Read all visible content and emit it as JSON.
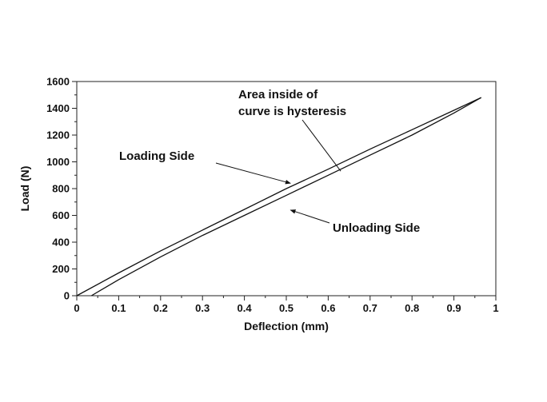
{
  "chart_data": {
    "type": "line",
    "title": "",
    "xlabel": "Deflection (mm)",
    "ylabel": "Load (N)",
    "xlim": [
      0,
      1
    ],
    "ylim": [
      0,
      1600
    ],
    "x_ticks": [
      "0",
      "0.1",
      "0.2",
      "0.3",
      "0.4",
      "0.5",
      "0.6",
      "0.7",
      "0.8",
      "0.9",
      "1"
    ],
    "y_ticks": [
      "0",
      "200",
      "400",
      "600",
      "800",
      "1000",
      "1200",
      "1400",
      "1600"
    ],
    "grid": false,
    "series": [
      {
        "name": "Loading Side",
        "x": [
          0.0,
          0.1,
          0.2,
          0.3,
          0.4,
          0.5,
          0.6,
          0.7,
          0.8,
          0.9,
          0.965
        ],
        "y": [
          0,
          170,
          335,
          490,
          645,
          800,
          945,
          1095,
          1240,
          1385,
          1480
        ]
      },
      {
        "name": "Unloading Side",
        "x": [
          0.965,
          0.9,
          0.8,
          0.7,
          0.6,
          0.5,
          0.4,
          0.3,
          0.2,
          0.1,
          0.035
        ],
        "y": [
          1480,
          1365,
          1200,
          1050,
          900,
          750,
          600,
          450,
          290,
          120,
          0
        ]
      }
    ],
    "annotations": [
      {
        "id": "area",
        "lines": [
          "Area inside of",
          "curve is hysteresis"
        ],
        "target_x": 0.63,
        "target_y": 930
      },
      {
        "id": "loading",
        "lines": [
          "Loading Side"
        ],
        "target_x": 0.51,
        "target_y": 840
      },
      {
        "id": "unloading",
        "lines": [
          "Unloading Side"
        ],
        "target_x": 0.51,
        "target_y": 640
      }
    ]
  }
}
